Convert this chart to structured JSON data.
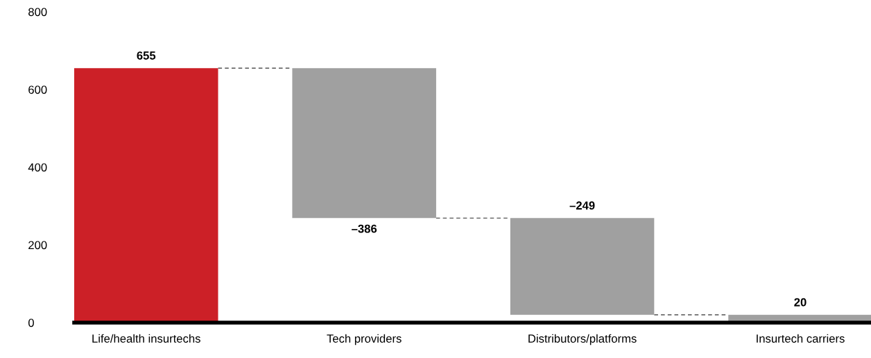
{
  "chart_data": {
    "type": "bar",
    "categories": [
      "Life/health insurtechs",
      "Tech providers",
      "Distributors/platforms",
      "Insurtech carriers"
    ],
    "values": [
      655,
      -386,
      -249,
      20
    ],
    "base": [
      0,
      655,
      269,
      0
    ],
    "colors": [
      "#cc2027",
      "#a0a0a0",
      "#a0a0a0",
      "#a0a0a0"
    ],
    "value_labels": [
      "655",
      "–386",
      "–249",
      "20"
    ],
    "ylim": [
      0,
      800
    ],
    "yticks": [
      0,
      200,
      400,
      600,
      800
    ],
    "grid": false,
    "legend": false
  }
}
